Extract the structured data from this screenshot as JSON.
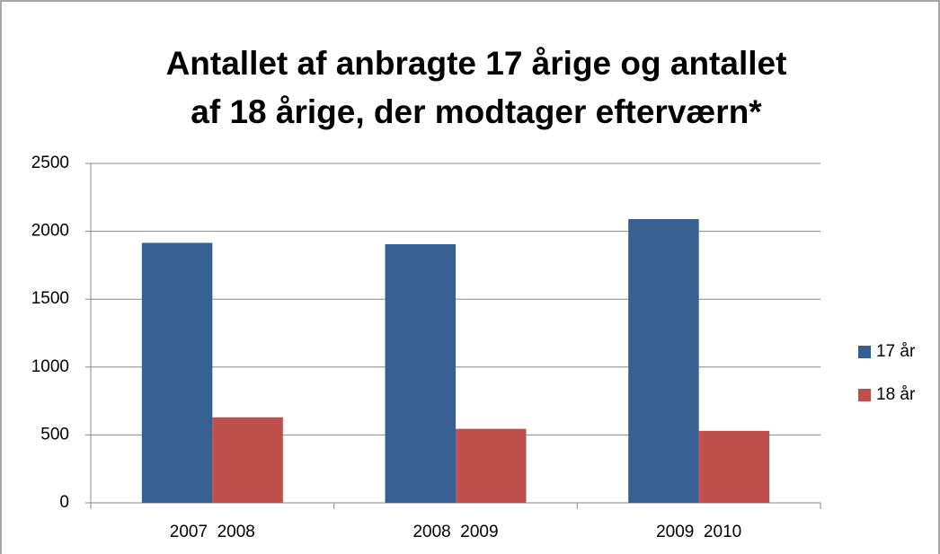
{
  "chart_data": {
    "type": "bar",
    "title": [
      "Antallet af anbragte 17 årige og antallet",
      "af 18 årige, der modtager efterværn*"
    ],
    "categories": [
      "2007  2008",
      "2008  2009",
      "2009  2010"
    ],
    "series": [
      {
        "name": "17 år",
        "color": "#366092",
        "values": [
          1915,
          1905,
          2090
        ]
      },
      {
        "name": "18 år",
        "color": "#c0504d",
        "values": [
          630,
          545,
          530
        ]
      }
    ],
    "ylim": [
      0,
      2500
    ],
    "yticks": [
      0,
      500,
      1000,
      1500,
      2000,
      2500
    ],
    "grid": true,
    "legend": "right"
  }
}
